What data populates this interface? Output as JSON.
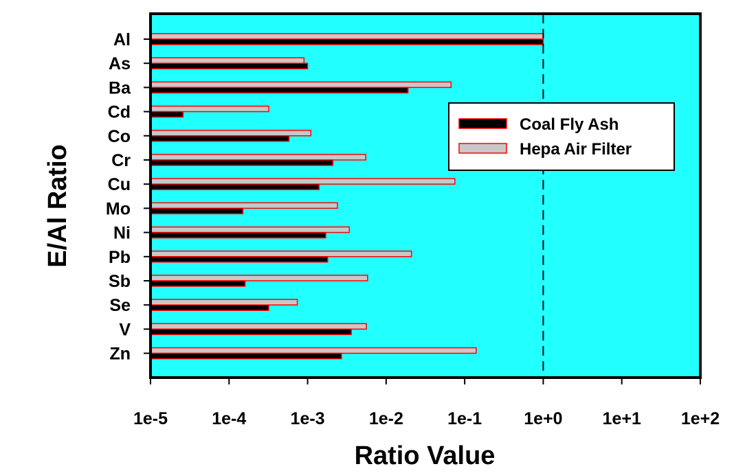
{
  "chart_data": {
    "type": "bar",
    "orientation": "horizontal",
    "xlabel": "Ratio Value",
    "ylabel": "E/Al Ratio",
    "x_scale": "log",
    "xlim": [
      1e-05,
      100
    ],
    "x_ticks": [
      "1e-5",
      "1e-4",
      "1e-3",
      "1e-2",
      "1e-1",
      "1e+0",
      "1e+1",
      "1e+2"
    ],
    "reference_line": {
      "x": 1,
      "style": "dashed"
    },
    "background_color": "#22FFFF",
    "legend_position": "upper-right",
    "categories": [
      "Al",
      "As",
      "Ba",
      "Cd",
      "Co",
      "Cr",
      "Cu",
      "Mo",
      "Ni",
      "Pb",
      "Sb",
      "Se",
      "V",
      "Zn"
    ],
    "series": [
      {
        "name": "Coal Fly Ash",
        "color": "#000000",
        "edge_color": "#FF0000",
        "values": [
          1.0,
          0.001,
          0.019,
          2.6e-05,
          0.00058,
          0.0021,
          0.0014,
          0.00015,
          0.0017,
          0.0018,
          0.00016,
          0.00032,
          0.0036,
          0.0027
        ]
      },
      {
        "name": "Hepa Air Filter",
        "color": "#C8C8C8",
        "edge_color": "#FF0000",
        "values": [
          1.0,
          0.0009,
          0.067,
          0.00032,
          0.0011,
          0.0055,
          0.075,
          0.0024,
          0.0034,
          0.021,
          0.0058,
          0.00074,
          0.0056,
          0.14
        ]
      }
    ]
  }
}
